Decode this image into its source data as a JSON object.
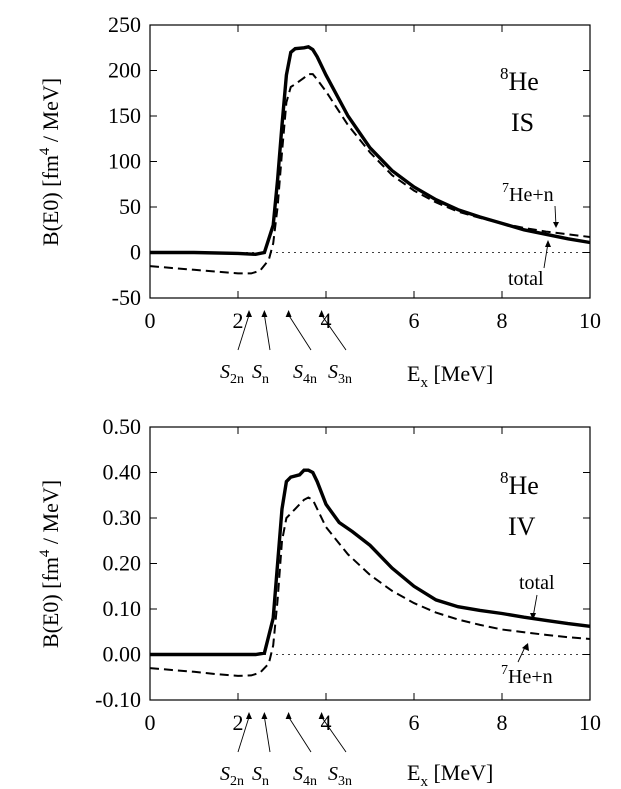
{
  "chart_data": [
    {
      "type": "line",
      "panel_label": {
        "nucleus_mass": "8",
        "nucleus": "He",
        "mode": "IS"
      },
      "ylabel": "B(E0) [fm4 / MeV]",
      "ylabel_parts": {
        "pre": "B(E0) [fm",
        "sup": "4",
        "post": " / MeV]"
      },
      "xlabel": "Ex [MeV]",
      "xlabel_parts": {
        "base": "E",
        "sub": "x",
        "post": " [MeV]"
      },
      "xlim": [
        0,
        10
      ],
      "ylim": [
        -50,
        250
      ],
      "xticks": [
        "0",
        "2",
        "4",
        "6",
        "8",
        "10"
      ],
      "yticks": [
        "-50",
        "0",
        "50",
        "100",
        "150",
        "200",
        "250"
      ],
      "zero_line": true,
      "series": [
        {
          "name": "total",
          "style": "solid",
          "x": [
            0,
            1,
            2,
            2.4,
            2.6,
            2.8,
            2.9,
            3.0,
            3.1,
            3.2,
            3.3,
            3.5,
            3.6,
            3.7,
            3.8,
            4.0,
            4.5,
            5.0,
            5.5,
            6.0,
            6.5,
            7.0,
            7.5,
            8.0,
            8.5,
            9.0,
            9.5,
            10.0
          ],
          "y": [
            0,
            0,
            -1,
            -2,
            0,
            30,
            80,
            140,
            195,
            220,
            224,
            225,
            226,
            223,
            215,
            195,
            150,
            115,
            90,
            72,
            58,
            47,
            39,
            32,
            25,
            20,
            15,
            11
          ]
        },
        {
          "name": "7He+n",
          "style": "dashed",
          "x": [
            0,
            0.5,
            1,
            1.5,
            2,
            2.3,
            2.5,
            2.7,
            2.8,
            2.9,
            3.0,
            3.1,
            3.2,
            3.3,
            3.5,
            3.6,
            3.7,
            3.8,
            4.0,
            4.5,
            5.0,
            5.5,
            6.0,
            6.5,
            7.0,
            7.5,
            8.0,
            8.5,
            9.0,
            9.5,
            10.0
          ],
          "y": [
            -15,
            -17,
            -19,
            -21,
            -23,
            -23,
            -20,
            -8,
            10,
            50,
            110,
            165,
            182,
            185,
            192,
            196,
            196,
            190,
            177,
            140,
            110,
            85,
            68,
            55,
            45,
            38,
            32,
            27,
            23,
            20,
            17
          ]
        }
      ],
      "annotations": [
        {
          "text_base": "7",
          "text_rest": "He+n",
          "x": 8.8,
          "y": 17
        },
        {
          "text_base": "",
          "text_rest": "total",
          "x": 8.8,
          "y": 12
        }
      ],
      "thresholds": [
        {
          "sym": "S",
          "sub": "2n",
          "x": 2.25
        },
        {
          "sym": "S",
          "sub": "n",
          "x": 2.6
        },
        {
          "sym": "S",
          "sub": "4n",
          "x": 3.15
        },
        {
          "sym": "S",
          "sub": "3n",
          "x": 3.9
        }
      ]
    },
    {
      "type": "line",
      "panel_label": {
        "nucleus_mass": "8",
        "nucleus": "He",
        "mode": "IV"
      },
      "ylabel": "B(E0) [fm4 / MeV]",
      "ylabel_parts": {
        "pre": "B(E0) [fm",
        "sup": "4",
        "post": " / MeV]"
      },
      "xlabel": "Ex [MeV]",
      "xlabel_parts": {
        "base": "E",
        "sub": "x",
        "post": " [MeV]"
      },
      "xlim": [
        0,
        10
      ],
      "ylim": [
        -0.1,
        0.5
      ],
      "xticks": [
        "0",
        "2",
        "4",
        "6",
        "8",
        "10"
      ],
      "yticks": [
        "-0.10",
        "0.00",
        "0.10",
        "0.20",
        "0.30",
        "0.40",
        "0.50"
      ],
      "zero_line": true,
      "series": [
        {
          "name": "total",
          "style": "solid",
          "x": [
            0,
            1,
            2,
            2.4,
            2.6,
            2.8,
            2.9,
            3.0,
            3.1,
            3.2,
            3.4,
            3.5,
            3.6,
            3.7,
            3.8,
            4.0,
            4.3,
            4.6,
            5.0,
            5.5,
            6.0,
            6.5,
            7.0,
            7.5,
            8.0,
            8.5,
            9.0,
            9.5,
            10.0
          ],
          "y": [
            0,
            0,
            0,
            0,
            0.003,
            0.08,
            0.2,
            0.32,
            0.38,
            0.39,
            0.395,
            0.405,
            0.405,
            0.4,
            0.38,
            0.33,
            0.29,
            0.27,
            0.24,
            0.19,
            0.15,
            0.12,
            0.105,
            0.097,
            0.09,
            0.082,
            0.075,
            0.068,
            0.062
          ]
        },
        {
          "name": "7He+n",
          "style": "dashed",
          "x": [
            0,
            0.5,
            1,
            1.5,
            2,
            2.3,
            2.5,
            2.7,
            2.8,
            2.9,
            3.0,
            3.1,
            3.3,
            3.5,
            3.6,
            3.7,
            3.8,
            4.0,
            4.5,
            5.0,
            5.5,
            6.0,
            6.5,
            7.0,
            7.5,
            8.0,
            8.5,
            9.0,
            9.5,
            10.0
          ],
          "y": [
            -0.03,
            -0.034,
            -0.038,
            -0.043,
            -0.047,
            -0.046,
            -0.04,
            -0.02,
            0.02,
            0.12,
            0.25,
            0.3,
            0.32,
            0.34,
            0.345,
            0.34,
            0.32,
            0.28,
            0.22,
            0.175,
            0.14,
            0.113,
            0.092,
            0.077,
            0.065,
            0.055,
            0.049,
            0.043,
            0.038,
            0.034
          ]
        }
      ],
      "annotations": [
        {
          "text_base": "",
          "text_rest": "total",
          "x": 8.6,
          "y": 0.085
        },
        {
          "text_base": "7",
          "text_rest": "He+n",
          "x": 8.2,
          "y": 0.045
        }
      ],
      "thresholds": [
        {
          "sym": "S",
          "sub": "2n",
          "x": 2.25
        },
        {
          "sym": "S",
          "sub": "n",
          "x": 2.6
        },
        {
          "sym": "S",
          "sub": "4n",
          "x": 3.15
        },
        {
          "sym": "S",
          "sub": "3n",
          "x": 3.9
        }
      ]
    }
  ]
}
